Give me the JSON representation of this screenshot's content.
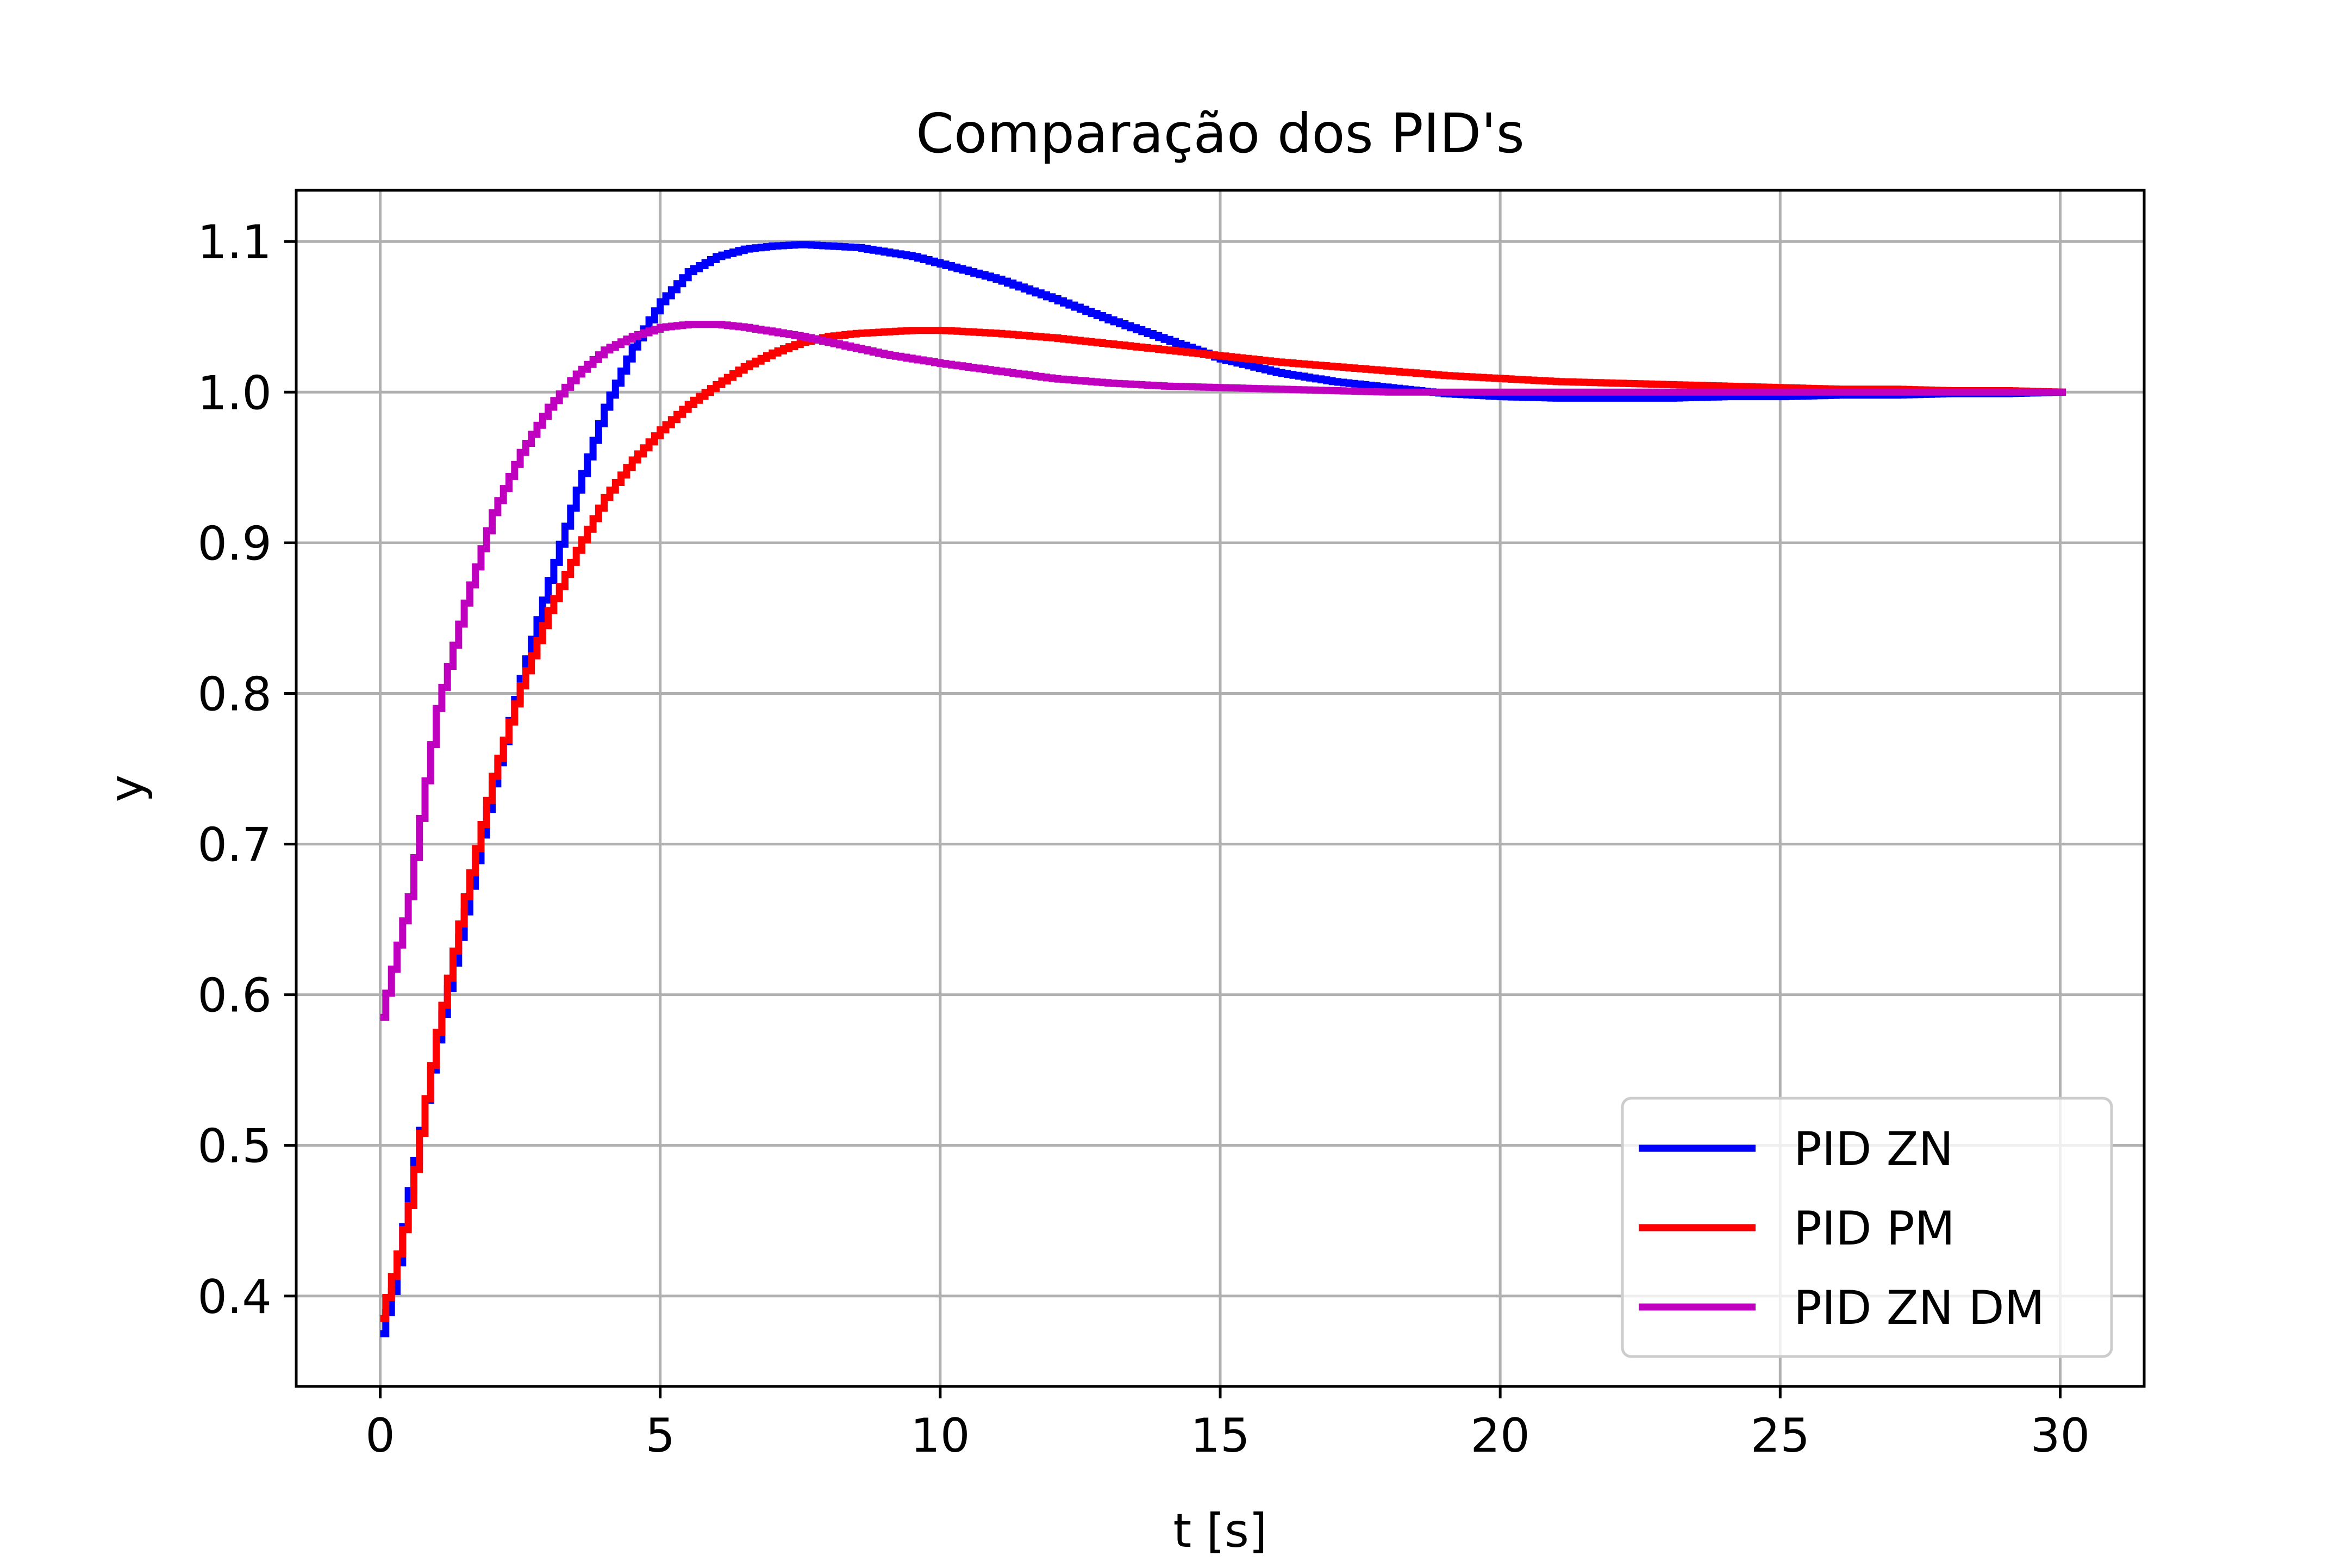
{
  "chart_data": {
    "type": "line",
    "title": "Comparação dos PID's",
    "xlabel": "t [s]",
    "ylabel": "y",
    "xlim": [
      -1.5,
      31.5
    ],
    "ylim": [
      0.34,
      1.134
    ],
    "xticks": [
      0,
      5,
      10,
      15,
      20,
      25,
      30
    ],
    "xtick_labels": [
      "0",
      "5",
      "10",
      "15",
      "20",
      "25",
      "30"
    ],
    "yticks": [
      0.4,
      0.5,
      0.6,
      0.7,
      0.8,
      0.9,
      1.0,
      1.1
    ],
    "ytick_labels": [
      "0.4",
      "0.5",
      "0.6",
      "0.7",
      "0.8",
      "0.9",
      "1.0",
      "1.1"
    ],
    "grid": true,
    "legend_position": "lower-right",
    "step_style": true,
    "series": [
      {
        "name": "PID ZN",
        "color": "#0000ff",
        "x": [
          0,
          0.25,
          0.5,
          0.75,
          1,
          1.5,
          2,
          2.5,
          3,
          3.5,
          4,
          4.5,
          5,
          5.5,
          6,
          6.5,
          7,
          7.5,
          8,
          8.5,
          9,
          9.5,
          10,
          11,
          12,
          13,
          14,
          15,
          16,
          17,
          18,
          19,
          20,
          21,
          22,
          23,
          24,
          25,
          26,
          27,
          28,
          29,
          30
        ],
        "y": [
          0.375,
          0.41,
          0.47,
          0.52,
          0.57,
          0.655,
          0.74,
          0.81,
          0.875,
          0.935,
          0.99,
          1.03,
          1.06,
          1.08,
          1.09,
          1.095,
          1.097,
          1.098,
          1.097,
          1.096,
          1.093,
          1.09,
          1.085,
          1.075,
          1.062,
          1.048,
          1.035,
          1.022,
          1.013,
          1.007,
          1.003,
          0.999,
          0.997,
          0.996,
          0.996,
          0.996,
          0.997,
          0.997,
          0.998,
          0.998,
          0.999,
          0.999,
          1.0
        ]
      },
      {
        "name": "PID PM",
        "color": "#ff0000",
        "x": [
          0,
          0.25,
          0.5,
          0.75,
          1,
          1.5,
          2,
          2.5,
          3,
          3.5,
          4,
          4.5,
          5,
          5.5,
          6,
          6.5,
          7,
          7.5,
          8,
          8.5,
          9,
          9.5,
          10,
          11,
          12,
          13,
          14,
          15,
          16,
          17,
          18,
          19,
          20,
          21,
          22,
          23,
          24,
          25,
          26,
          27,
          28,
          29,
          30
        ],
        "y": [
          0.385,
          0.42,
          0.46,
          0.52,
          0.575,
          0.665,
          0.745,
          0.805,
          0.855,
          0.895,
          0.93,
          0.955,
          0.975,
          0.992,
          1.005,
          1.017,
          1.026,
          1.033,
          1.037,
          1.039,
          1.04,
          1.041,
          1.041,
          1.039,
          1.036,
          1.032,
          1.028,
          1.024,
          1.02,
          1.017,
          1.014,
          1.011,
          1.009,
          1.007,
          1.006,
          1.005,
          1.004,
          1.003,
          1.002,
          1.002,
          1.001,
          1.001,
          1.0
        ]
      },
      {
        "name": "PID ZN DM",
        "color": "#bf00bf",
        "x": [
          0,
          0.25,
          0.5,
          0.75,
          1,
          1.5,
          2,
          2.5,
          3,
          3.5,
          4,
          4.5,
          5,
          5.5,
          6,
          6.5,
          7,
          7.5,
          8,
          8.5,
          9,
          9.5,
          10,
          11,
          12,
          13,
          14,
          15,
          16,
          17,
          18,
          19,
          20,
          21,
          22,
          23,
          24,
          25,
          26,
          27,
          28,
          29,
          30
        ],
        "y": [
          0.585,
          0.625,
          0.665,
          0.73,
          0.79,
          0.86,
          0.92,
          0.96,
          0.99,
          1.012,
          1.028,
          1.037,
          1.043,
          1.045,
          1.045,
          1.043,
          1.04,
          1.037,
          1.033,
          1.029,
          1.025,
          1.022,
          1.019,
          1.014,
          1.009,
          1.006,
          1.004,
          1.003,
          1.002,
          1.001,
          1.0,
          1.0,
          1.0,
          1.0,
          1.0,
          1.0,
          1.0,
          1.0,
          1.0,
          1.0,
          1.0,
          1.0,
          1.0
        ]
      }
    ]
  }
}
